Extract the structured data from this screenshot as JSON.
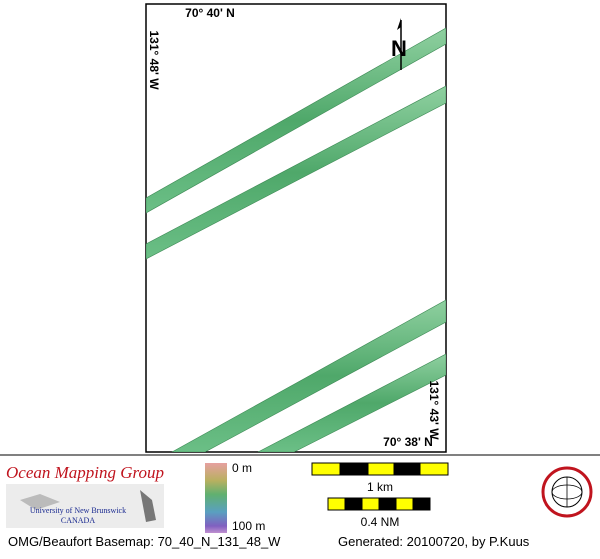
{
  "map": {
    "lat_top": "70° 40' N",
    "lat_bottom": "70° 38' N",
    "lon_left": "131° 48' W",
    "lon_right": "131° 43' W",
    "north": "N"
  },
  "legend": {
    "org": "Ocean Mapping Group",
    "university": "University of New Brunswick",
    "country": "CANADA",
    "depth_top": "0 m",
    "depth_bottom": "100 m",
    "scale_km": "1 km",
    "scale_nm": "0.4 NM"
  },
  "footer": {
    "basemap": "OMG/Beaufort Basemap: 70_40_N_131_48_W",
    "generated": "Generated: 20100720, by P.Kuus"
  }
}
